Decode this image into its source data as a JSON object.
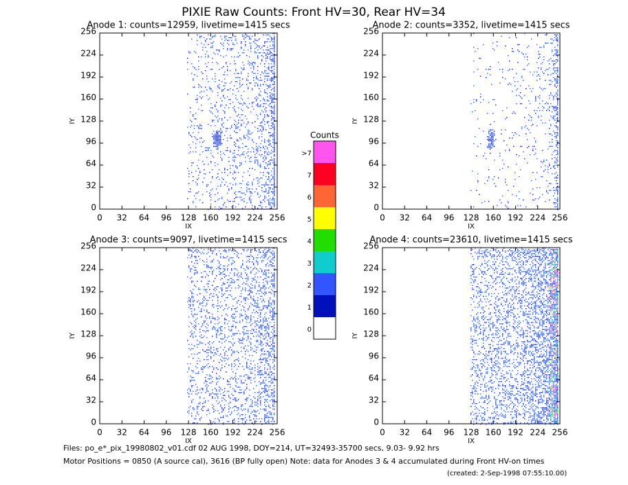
{
  "title": "PIXIE Raw Counts:  Front HV=30, Rear HV=34",
  "chart_data": [
    {
      "type": "heatmap",
      "title": "Anode 1: counts=12959, livetime=1415 secs",
      "xlabel": "IX",
      "ylabel": "IY",
      "xlim": [
        0,
        256
      ],
      "ylim": [
        0,
        256
      ],
      "xticks": [
        0,
        32,
        64,
        96,
        128,
        160,
        192,
        224,
        256
      ],
      "yticks": [
        0,
        32,
        64,
        96,
        128,
        160,
        192,
        224,
        256
      ]
    },
    {
      "type": "heatmap",
      "title": "Anode 2: counts=3352, livetime=1415 secs",
      "xlabel": "IX",
      "ylabel": "IY",
      "xlim": [
        0,
        256
      ],
      "ylim": [
        0,
        256
      ],
      "xticks": [
        0,
        32,
        64,
        96,
        128,
        160,
        192,
        224,
        256
      ],
      "yticks": [
        0,
        32,
        64,
        96,
        128,
        160,
        192,
        224,
        256
      ]
    },
    {
      "type": "heatmap",
      "title": "Anode 3: counts=9097, livetime=1415 secs",
      "xlabel": "IX",
      "ylabel": "IY",
      "xlim": [
        0,
        256
      ],
      "ylim": [
        0,
        256
      ],
      "xticks": [
        0,
        32,
        64,
        96,
        128,
        160,
        192,
        224,
        256
      ],
      "yticks": [
        0,
        32,
        64,
        96,
        128,
        160,
        192,
        224,
        256
      ]
    },
    {
      "type": "heatmap",
      "title": "Anode 4: counts=23610, livetime=1415 secs",
      "xlabel": "IX",
      "ylabel": "IY",
      "xlim": [
        0,
        256
      ],
      "ylim": [
        0,
        256
      ],
      "xticks": [
        0,
        32,
        64,
        96,
        128,
        160,
        192,
        224,
        256
      ],
      "yticks": [
        0,
        32,
        64,
        96,
        128,
        160,
        192,
        224,
        256
      ]
    }
  ],
  "colorbar": {
    "title": "Counts",
    "labels": [
      ">7",
      "7",
      "6",
      "5",
      "4",
      "3",
      "2",
      "1",
      "0"
    ],
    "colors": [
      "#ff55ee",
      "#ff0022",
      "#ff6633",
      "#ffff00",
      "#22dd00",
      "#11cccc",
      "#3355ff",
      "#0011bb",
      "#ffffff"
    ]
  },
  "footer": {
    "files": "Files: po_e*_pix_19980802_v01.cdf    02 AUG 1998, DOY=214, UT=32493-35700 secs,  9.03- 9.92 hrs",
    "motor": "Motor Positions = 0850 (A source cal), 3616 (BP fully open)    Note: data for Anodes 3 & 4 accumulated during Front HV-on times",
    "created": "(created:  2-Sep-1998 07:55:10.00)"
  }
}
